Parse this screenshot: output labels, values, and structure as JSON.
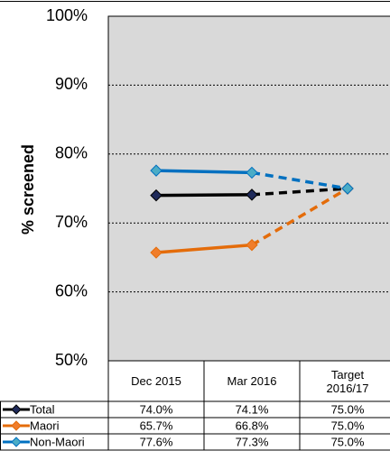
{
  "chart_data": {
    "type": "line",
    "ylabel": "% screened",
    "categories": [
      "Dec 2015",
      "Mar 2016",
      "Target 2016/17"
    ],
    "ylim": [
      50,
      100
    ],
    "yticks": [
      {
        "value": 50,
        "label": "50%"
      },
      {
        "value": 60,
        "label": "60%"
      },
      {
        "value": 70,
        "label": "70%"
      },
      {
        "value": 80,
        "label": "80%"
      },
      {
        "value": 90,
        "label": "90%"
      },
      {
        "value": 100,
        "label": "100%"
      }
    ],
    "grid": true,
    "series": [
      {
        "name": "Total",
        "color": "#000000",
        "marker_color": "#1f2a5a",
        "values": [
          74.0,
          74.1,
          75.0
        ],
        "value_labels": [
          "74.0%",
          "74.1%",
          "75.0%"
        ]
      },
      {
        "name": "Maori",
        "color": "#e46c0a",
        "marker_color": "#f07d2a",
        "values": [
          65.7,
          66.8,
          75.0
        ],
        "value_labels": [
          "65.7%",
          "66.8%",
          "75.0%"
        ]
      },
      {
        "name": "Non-Maori",
        "color": "#0070c0",
        "marker_color": "#4bacc6",
        "values": [
          77.6,
          77.3,
          75.0
        ],
        "value_labels": [
          "77.6%",
          "77.3%",
          "75.0%"
        ]
      }
    ]
  }
}
